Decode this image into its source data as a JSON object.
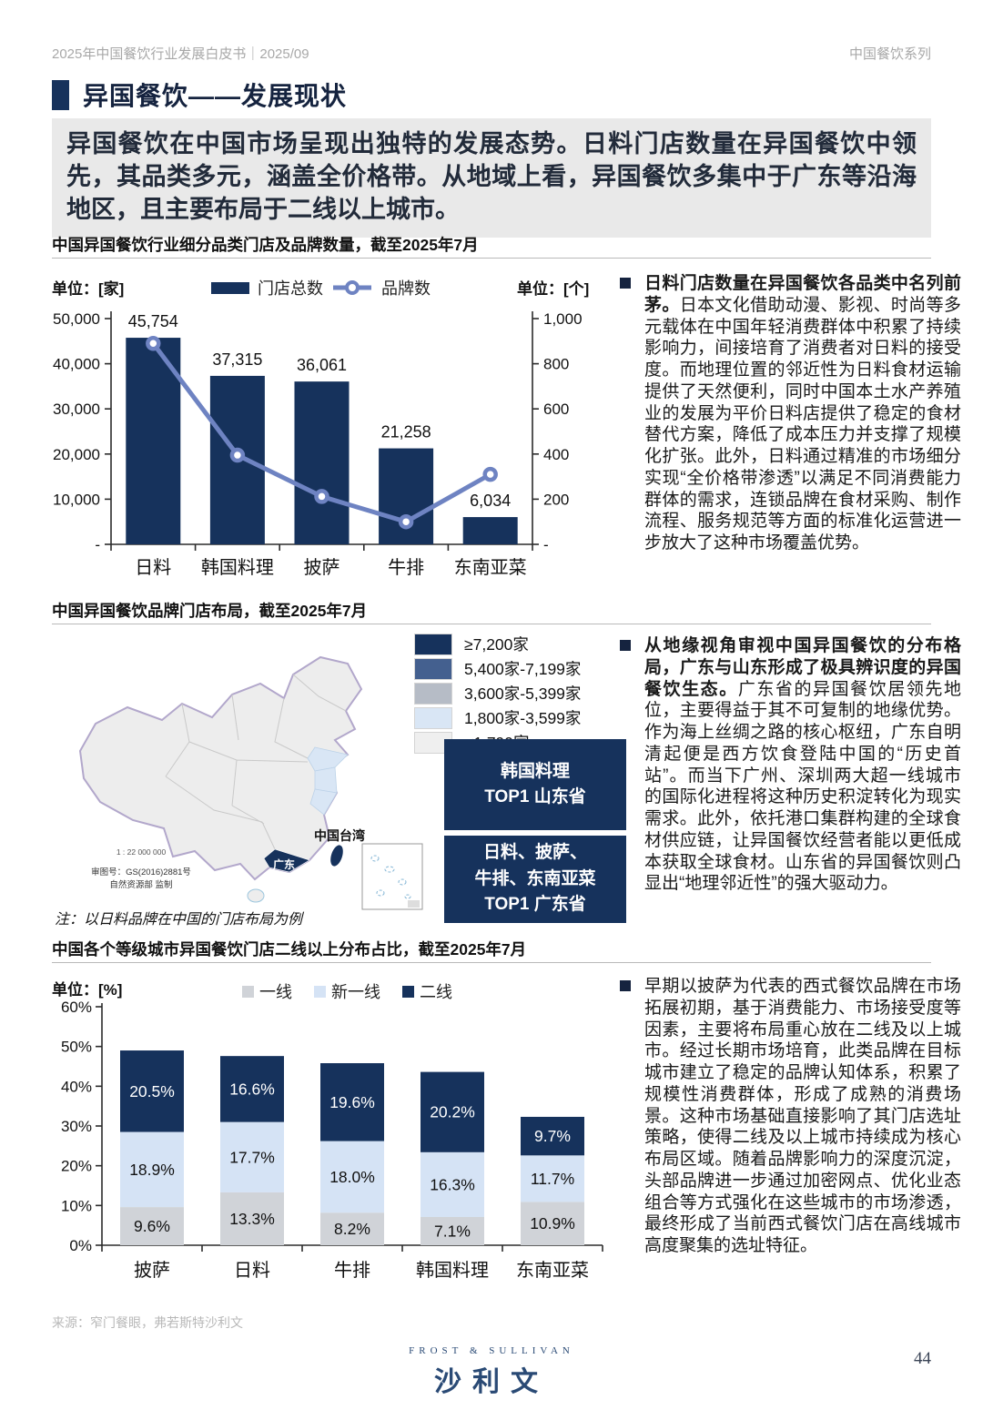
{
  "page": {
    "header_left": "2025年中国餐饮行业发展白皮书｜2025/09",
    "header_right": "中国餐饮系列",
    "title": "异国餐饮——发展现状",
    "intro": "异国餐饮在中国市场呈现出独特的发展态势。日料门店数量在异国餐饮中领先，其品类多元，涵盖全价格带。从地域上看，异国餐饮多集中于广东等沿海地区，且主要布局于二线以上城市。",
    "source": "来源：窄门餐眼，弗若斯特沙利文",
    "logo_top": "FROST & SULLIVAN",
    "logo_main": "沙利文",
    "page_number": "44"
  },
  "colors": {
    "navy": "#16325C",
    "lineblue": "#6E83C2",
    "medblue": "#44608F",
    "graysw": "#B6BCC6",
    "lightblue": "#D9E6F5",
    "stackgray": "#D0D3D8",
    "stacklightblue": "#D5E3F5",
    "verylightgray": "#EFEFEF"
  },
  "section1": {
    "title": "中国异国餐饮行业细分品类门店及品牌数量，截至2025年7月",
    "unit_left": "单位：[家]",
    "unit_right": "单位：[个]",
    "bullet_lead": "日料门店数量在异国餐饮各品类中名列前茅。",
    "bullet_body": "日本文化借助动漫、影视、时尚等多元载体在中国年轻消费群体中积累了持续影响力，间接培育了消费者对日料的接受度。而地理位置的邻近性为日料食材运输提供了天然便利，同时中国本土水产养殖业的发展为平价日料店提供了稳定的食材替代方案，降低了成本压力并支撑了规模化扩张。此外，日料通过精准的市场细分实现“全价格带渗透”以满足不同消费能力群体的需求，连锁品牌在食材采购、制作流程、服务规范等方面的标准化运营进一步放大了这种市场覆盖优势。"
  },
  "section2": {
    "title": "中国异国餐饮品牌门店布局，截至2025年7月",
    "legend_items": [
      {
        "label": "≥7,200家",
        "color": "#16325C"
      },
      {
        "label": "5,400家-7,199家",
        "color": "#44608F"
      },
      {
        "label": "3,600家-5,399家",
        "color": "#B6BCC6"
      },
      {
        "label": "1,800家-3,599家",
        "color": "#D9E6F5"
      },
      {
        "label": "<1,799家",
        "color": "#EFEFEF"
      }
    ],
    "box1_line1": "韩国料理",
    "box1_line2": "TOP1 山东省",
    "box2_line1": "日料、披萨、",
    "box2_line2": "牛排、东南亚菜",
    "box2_line3": "TOP1 广东省",
    "note": "注：以日料品牌在中国的门店布局为例",
    "map": {
      "taiwan_label": "中国台湾",
      "guangdong_label": "广东",
      "scale": "1 : 22 000 000",
      "approval_line1": "审图号：GS(2016)2881号",
      "approval_line2": "自然资源部 监制"
    },
    "bullet_lead": "从地缘视角审视中国异国餐饮的分布格局，广东与山东形成了极具辨识度的异国餐饮生态。",
    "bullet_body": "广东省的异国餐饮居领先地位，主要得益于其不可复制的地缘优势。作为海上丝绸之路的核心枢纽，广东自明清起便是西方饮食登陆中国的“历史首站”。而当下广州、深圳两大超一线城市的国际化进程将这种历史积淀转化为现实需求。此外，依托港口集群构建的全球食材供应链，让异国餐饮经营者能以更低成本获取全球食材。山东省的异国餐饮则凸显出“地理邻近性”的强大驱动力。"
  },
  "section3": {
    "title": "中国各个等级城市异国餐饮门店二线以上分布占比，截至2025年7月",
    "unit": "单位：[%]",
    "bullet_body": "早期以披萨为代表的西式餐饮品牌在市场拓展初期，基于消费能力、市场接受度等因素，主要将布局重心放在二线及以上城市。经过长期市场培育，此类品牌在目标城市建立了稳定的品牌认知体系，积累了规模性消费群体，形成了成熟的消费场景。这种市场基础直接影响了其门店选址策略，使得二线及以上城市持续成为核心布局区域。随着品牌影响力的深度沉淀，头部品牌进一步通过加密网点、优化业态组合等方式强化在这些城市的市场渗透，最终形成了当前西式餐饮门店在高线城市高度聚集的选址特征。"
  },
  "chart_data": [
    {
      "type": "bar",
      "title": "中国异国餐饮行业细分品类门店及品牌数量，截至2025年7月",
      "categories": [
        "日料",
        "韩国料理",
        "披萨",
        "牛排",
        "东南亚菜"
      ],
      "series": [
        {
          "name": "门店总数",
          "render": "bar",
          "axis": "left",
          "values": [
            45754,
            37315,
            36061,
            21258,
            6034
          ]
        },
        {
          "name": "品牌数",
          "render": "line",
          "axis": "right",
          "values": [
            890,
            395,
            212,
            100,
            310
          ]
        }
      ],
      "bar_labels": [
        "45,754",
        "37,315",
        "36,061",
        "21,258",
        "6,034"
      ],
      "left_axis": {
        "unit": "家",
        "min": 0,
        "max": 50000,
        "step": 10000,
        "tick_labels": [
          "-",
          "10,000",
          "20,000",
          "30,000",
          "40,000",
          "50,000"
        ]
      },
      "right_axis": {
        "unit": "个",
        "min": 0,
        "max": 1000,
        "step": 200,
        "tick_labels": [
          "-",
          "200",
          "400",
          "600",
          "800",
          "1,000"
        ]
      },
      "grid": false,
      "legend_position": "top"
    },
    {
      "type": "bar",
      "subtype": "stacked",
      "title": "中国各个等级城市异国餐饮门店二线以上分布占比，截至2025年7月",
      "categories": [
        "披萨",
        "日料",
        "牛排",
        "韩国料理",
        "东南亚菜"
      ],
      "series": [
        {
          "name": "一线",
          "values": [
            9.6,
            13.3,
            8.2,
            7.1,
            10.9
          ],
          "color_key": "stackgray"
        },
        {
          "name": "新一线",
          "values": [
            18.9,
            17.7,
            18.0,
            16.3,
            11.7
          ],
          "color_key": "stacklightblue"
        },
        {
          "name": "二线",
          "values": [
            20.5,
            16.6,
            19.6,
            20.2,
            9.7
          ],
          "color_key": "navy"
        }
      ],
      "unit": "%",
      "ylim": [
        0,
        60
      ],
      "ytick_step": 10,
      "ytick_labels": [
        "0%",
        "10%",
        "20%",
        "30%",
        "40%",
        "50%",
        "60%"
      ],
      "grid": false,
      "legend_position": "top"
    }
  ]
}
